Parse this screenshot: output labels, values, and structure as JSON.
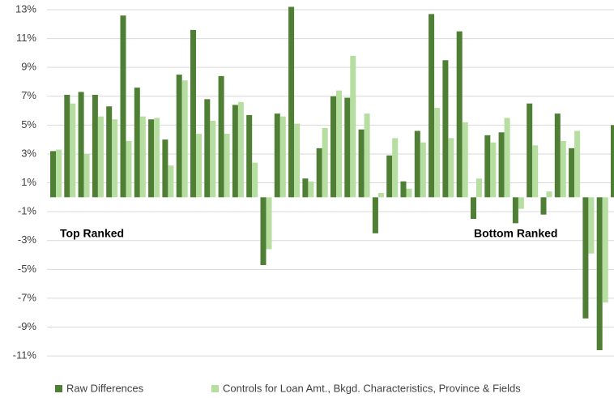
{
  "chart_data": {
    "type": "bar",
    "categories": [
      null,
      null,
      null,
      null,
      null,
      null,
      null,
      null,
      null,
      null,
      null,
      null,
      null,
      null,
      null,
      null,
      null,
      null,
      null,
      null,
      null,
      null,
      null,
      null,
      null,
      null,
      null,
      null,
      null,
      null,
      null,
      null,
      null,
      null,
      null,
      null,
      null,
      null,
      null,
      null,
      null
    ],
    "series": [
      {
        "name": "Raw Differences",
        "color": "#4f7f34",
        "values": [
          3.2,
          7.1,
          7.3,
          7.1,
          6.3,
          12.6,
          7.6,
          5.4,
          4.0,
          8.5,
          11.6,
          6.8,
          8.4,
          6.4,
          5.7,
          -4.7,
          5.8,
          13.2,
          1.3,
          3.4,
          7.0,
          6.9,
          4.7,
          -2.5,
          2.9,
          1.1,
          4.6,
          12.7,
          9.5,
          11.5,
          -1.5,
          4.3,
          4.5,
          -1.8,
          6.5,
          -1.2,
          5.8,
          3.4,
          -8.4,
          -10.6,
          5.0
        ]
      },
      {
        "name": "Controls for Loan Amt., Bkgd. Characteristics, Province & Fields",
        "color": "#b5dea0",
        "values": [
          3.3,
          6.5,
          3.0,
          5.6,
          5.4,
          3.9,
          5.6,
          5.5,
          2.2,
          8.1,
          4.4,
          5.3,
          4.4,
          6.6,
          2.4,
          -3.6,
          5.6,
          5.1,
          1.1,
          4.8,
          7.4,
          9.8,
          5.8,
          0.3,
          4.1,
          0.6,
          3.8,
          6.2,
          4.1,
          5.2,
          1.3,
          3.8,
          5.5,
          -0.8,
          3.6,
          0.4,
          3.9,
          4.6,
          -3.9,
          -7.3,
          null
        ]
      }
    ],
    "ylim": [
      -12,
      13.5
    ],
    "yticks": [
      {
        "value": 13,
        "label": "13%"
      },
      {
        "value": 11,
        "label": "11%"
      },
      {
        "value": 9,
        "label": "9%"
      },
      {
        "value": 7,
        "label": "7%"
      },
      {
        "value": 5,
        "label": "5%"
      },
      {
        "value": 3,
        "label": "3%"
      },
      {
        "value": 1,
        "label": "1%"
      },
      {
        "value": -1,
        "label": "-1%"
      },
      {
        "value": -3,
        "label": "-3%"
      },
      {
        "value": -5,
        "label": "-5%"
      },
      {
        "value": -7,
        "label": "-7%"
      },
      {
        "value": -9,
        "label": "-9%"
      },
      {
        "value": -11,
        "label": "-11%"
      }
    ],
    "grid": true,
    "annotations": [
      "Top Ranked",
      "Bottom Ranked"
    ],
    "legend": "bottom"
  }
}
